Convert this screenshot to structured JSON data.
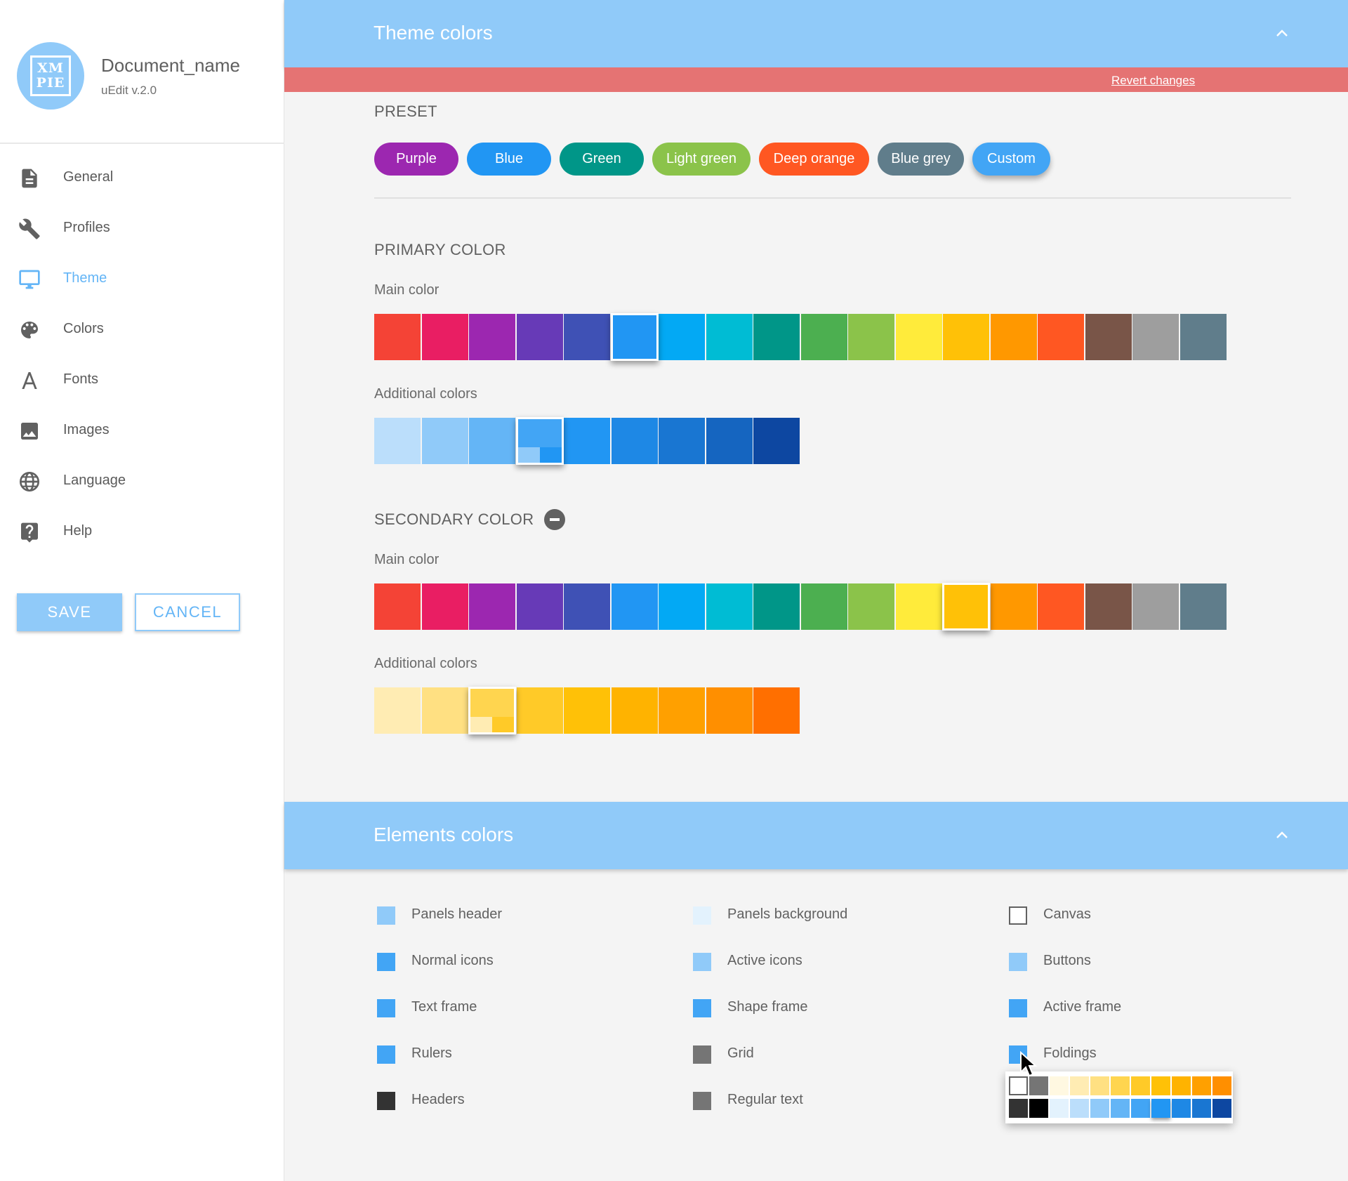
{
  "sidebar": {
    "doc_name": "Document_name",
    "version": "uEdit v.2.0",
    "logo": {
      "line1": "XM",
      "line2": "PIE"
    },
    "items": [
      {
        "label": "General",
        "icon": "document-icon",
        "active": false
      },
      {
        "label": "Profiles",
        "icon": "wrench-icon",
        "active": false
      },
      {
        "label": "Theme",
        "icon": "monitor-icon",
        "active": true
      },
      {
        "label": "Colors",
        "icon": "palette-icon",
        "active": false
      },
      {
        "label": "Fonts",
        "icon": "font-icon",
        "active": false
      },
      {
        "label": "Images",
        "icon": "image-icon",
        "active": false
      },
      {
        "label": "Language",
        "icon": "globe-icon",
        "active": false
      },
      {
        "label": "Help",
        "icon": "help-icon",
        "active": false
      }
    ],
    "save_label": "SAVE",
    "cancel_label": "CANCEL"
  },
  "theme": {
    "title": "Theme colors",
    "revert_label": "Revert changes",
    "preset_heading": "PRESET",
    "presets": [
      {
        "label": "Purple",
        "color": "#9c27b0"
      },
      {
        "label": "Blue",
        "color": "#2196f3"
      },
      {
        "label": "Green",
        "color": "#009688"
      },
      {
        "label": "Light green",
        "color": "#8bc34a"
      },
      {
        "label": "Deep orange",
        "color": "#ff5722"
      },
      {
        "label": "Blue grey",
        "color": "#607d8b"
      },
      {
        "label": "Custom",
        "color": "#42a5f5",
        "selected": true
      }
    ],
    "main_palette": [
      "#f44336",
      "#e91e63",
      "#9c27b0",
      "#673ab7",
      "#3f51b5",
      "#2196f3",
      "#03a9f4",
      "#00bcd4",
      "#009688",
      "#4caf50",
      "#8bc34a",
      "#ffeb3b",
      "#ffc107",
      "#ff9800",
      "#ff5722",
      "#795548",
      "#9e9e9e",
      "#607d8b"
    ],
    "primary": {
      "heading": "PRIMARY COLOR",
      "main_label": "Main color",
      "main_selected_index": 5,
      "additional_label": "Additional colors",
      "additional": [
        "#bbdefb",
        "#90caf9",
        "#64b5f6",
        "#42a5f5",
        "#2196f3",
        "#1e88e5",
        "#1976d2",
        "#1565c0",
        "#0d47a1"
      ],
      "additional_selected_index": 3
    },
    "secondary": {
      "heading": "SECONDARY COLOR",
      "main_label": "Main color",
      "main_selected_index": 12,
      "additional_label": "Additional colors",
      "additional": [
        "#ffecb3",
        "#ffe082",
        "#ffd54f",
        "#ffca28",
        "#ffc107",
        "#ffb300",
        "#ffa000",
        "#ff8f00",
        "#ff6f00"
      ],
      "additional_selected_index": 2
    }
  },
  "elements": {
    "title": "Elements colors",
    "items": [
      {
        "label": "Panels header",
        "color": "#90caf9"
      },
      {
        "label": "Panels background",
        "color": "#e3f2fd"
      },
      {
        "label": "Canvas",
        "color": "#ffffff",
        "outlined": true
      },
      {
        "label": "Normal icons",
        "color": "#42a5f5"
      },
      {
        "label": "Active icons",
        "color": "#90caf9"
      },
      {
        "label": "Buttons",
        "color": "#90caf9"
      },
      {
        "label": "Text frame",
        "color": "#42a5f5"
      },
      {
        "label": "Shape frame",
        "color": "#42a5f5"
      },
      {
        "label": "Active frame",
        "color": "#42a5f5"
      },
      {
        "label": "Rulers",
        "color": "#42a5f5"
      },
      {
        "label": "Grid",
        "color": "#757575"
      },
      {
        "label": "Foldings",
        "color": "#42a5f5"
      },
      {
        "label": "Headers",
        "color": "#333333"
      },
      {
        "label": "Regular text",
        "color": "#757575"
      }
    ],
    "picker_rows": [
      [
        "#ffffff",
        "#757575",
        "#fff8e1",
        "#ffecb3",
        "#ffe082",
        "#ffd54f",
        "#ffca28",
        "#ffc107",
        "#ffb300",
        "#ffa000",
        "#ff8f00"
      ],
      [
        "#333333",
        "#000000",
        "#e3f2fd",
        "#bbdefb",
        "#90caf9",
        "#64b5f6",
        "#42a5f5",
        "#2196f3",
        "#1e88e5",
        "#1976d2",
        "#0d47a1"
      ]
    ],
    "picker_selected": [
      1,
      7
    ]
  }
}
